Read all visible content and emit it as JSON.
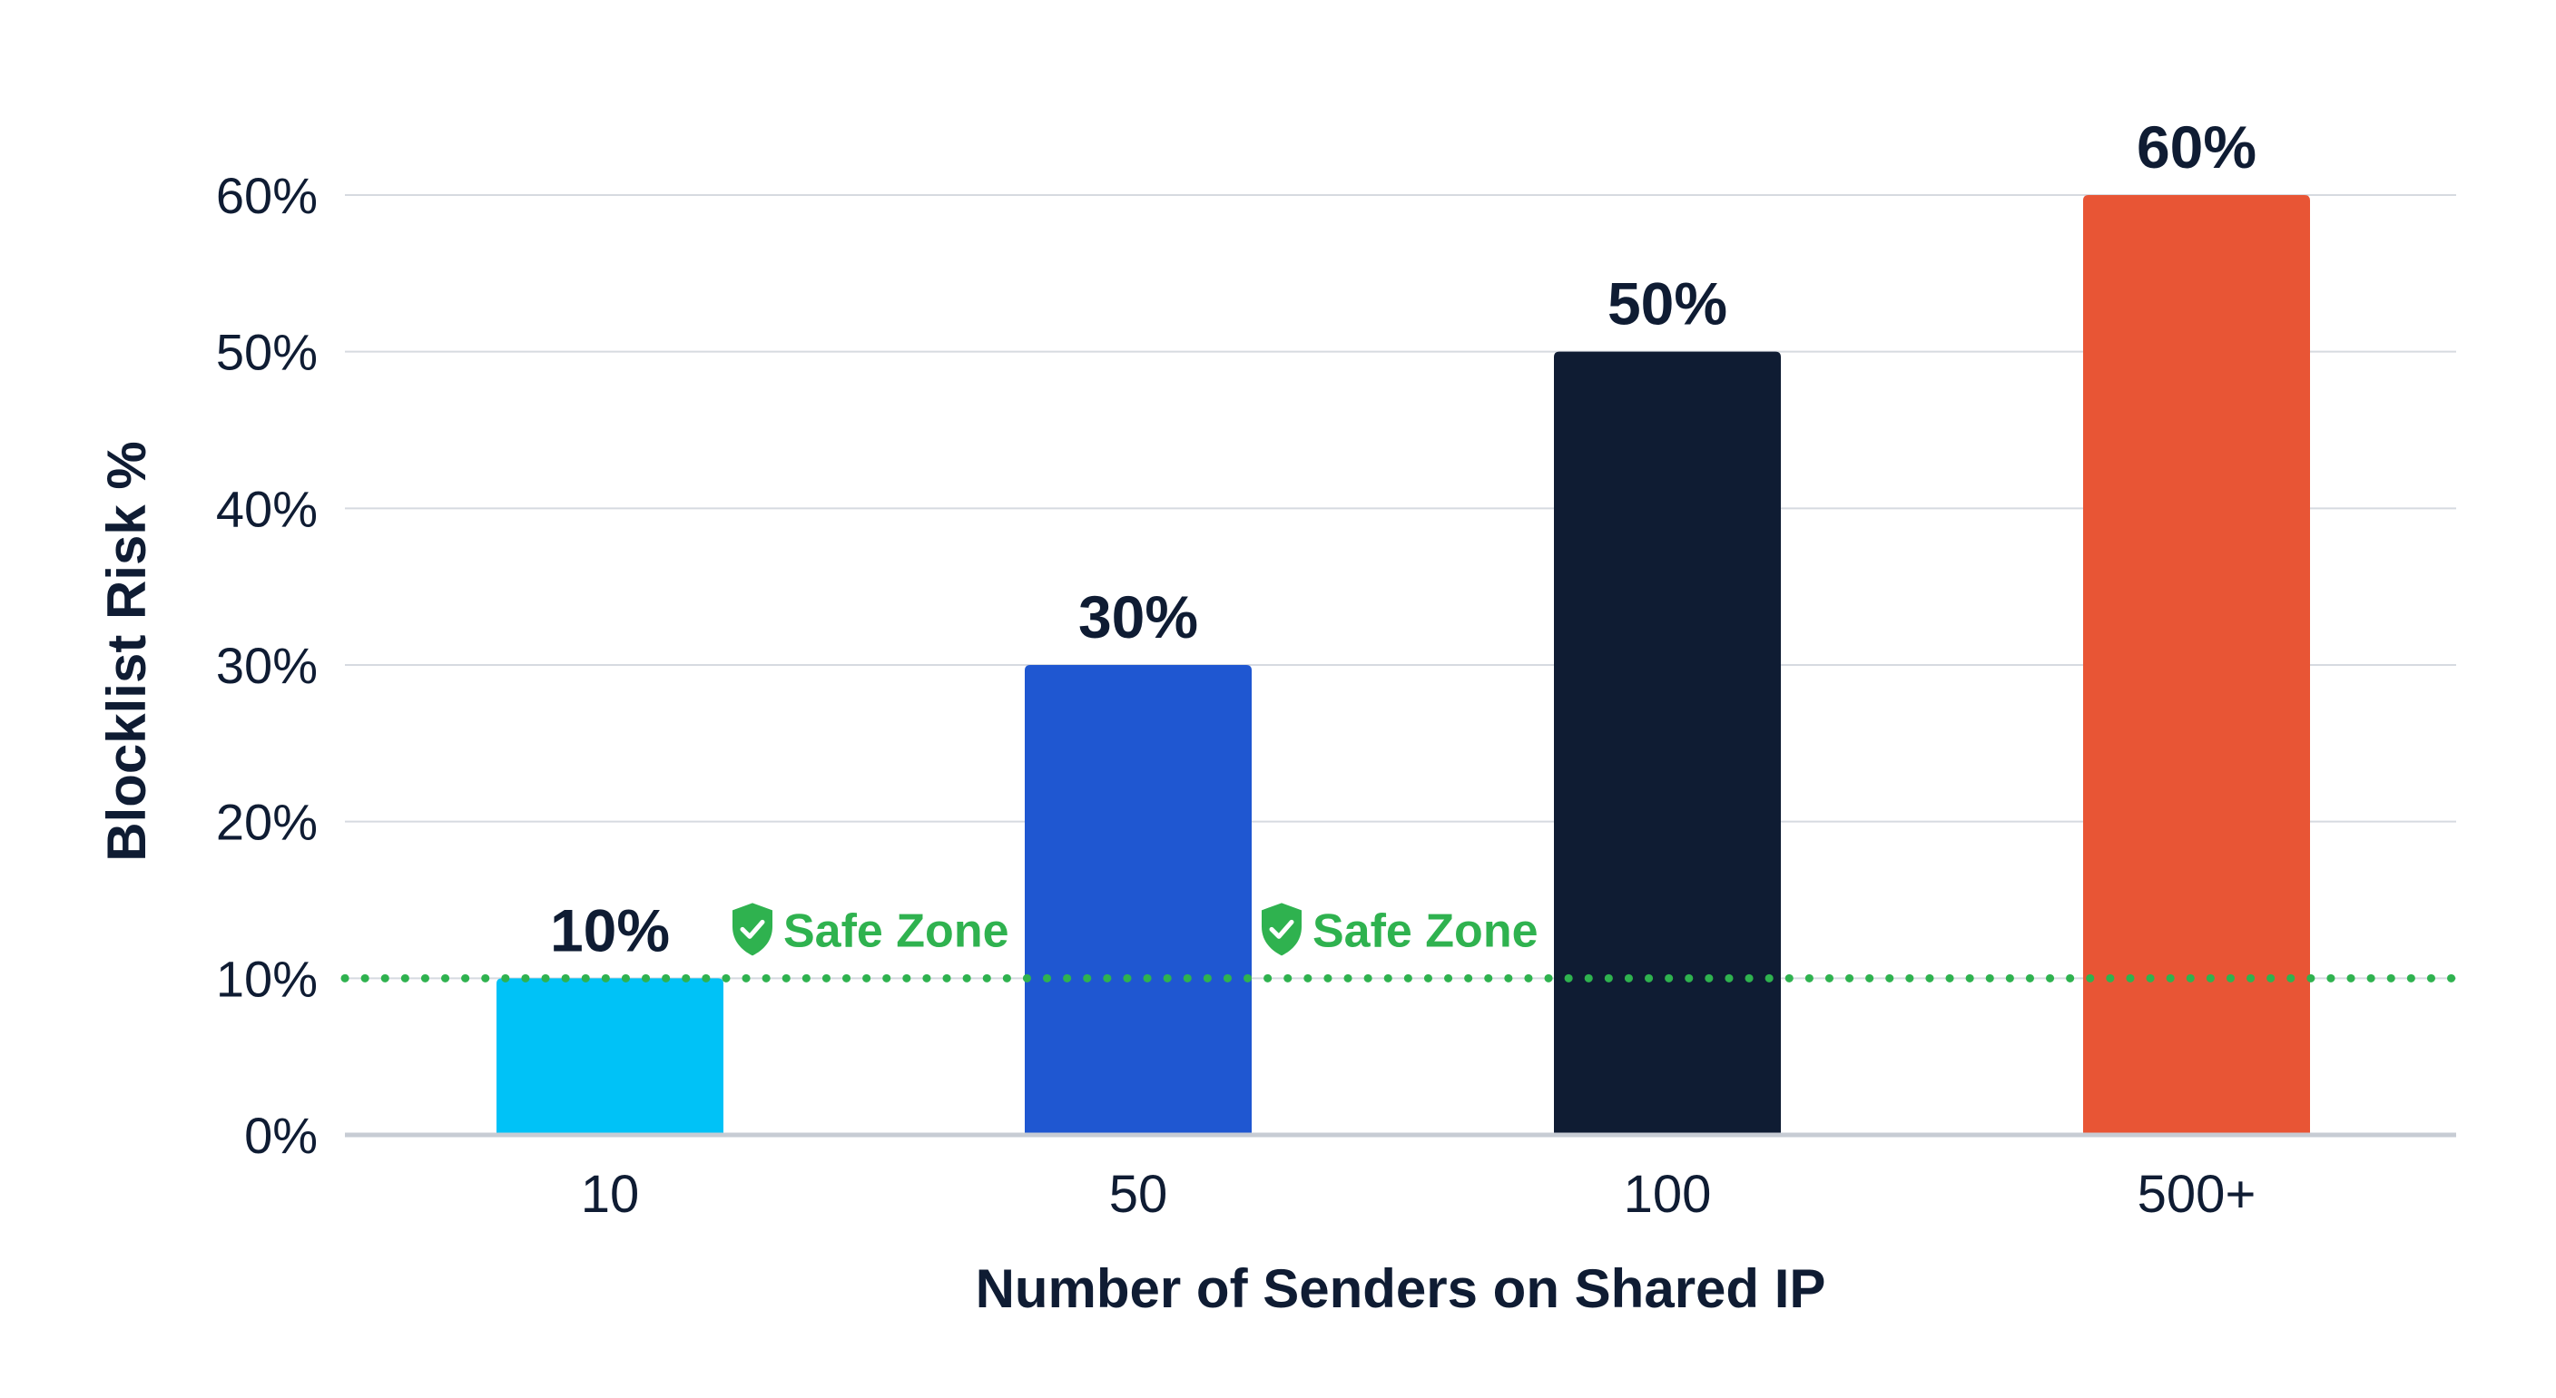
{
  "chart_data": {
    "type": "bar",
    "title": "",
    "xlabel": "Number of Senders on Shared IP",
    "ylabel": "Blocklist Risk %",
    "categories": [
      "10",
      "50",
      "100",
      "500+"
    ],
    "values": [
      10,
      30,
      50,
      60
    ],
    "value_labels": [
      "10%",
      "30%",
      "50%",
      "60%"
    ],
    "bar_colors": [
      "#00c2f7",
      "#1f57d1",
      "#0f1c33",
      "#e85535"
    ],
    "ylim": [
      0,
      60
    ],
    "yticks": [
      0,
      10,
      20,
      30,
      40,
      50,
      60
    ],
    "ytick_labels": [
      "0%",
      "10%",
      "20%",
      "30%",
      "40%",
      "50%",
      "60%"
    ],
    "grid": true,
    "threshold": {
      "value": 10,
      "color": "#2fb24f",
      "style": "dotted",
      "annotations": [
        {
          "label": "Safe Zone",
          "icon": "shield-check-icon"
        },
        {
          "label": "Safe Zone",
          "icon": "shield-check-icon"
        }
      ]
    }
  },
  "colors": {
    "text": "#0f1c33",
    "grid": "#d6dae0",
    "axis": "#c7ccd4",
    "safe": "#2fb24f"
  }
}
